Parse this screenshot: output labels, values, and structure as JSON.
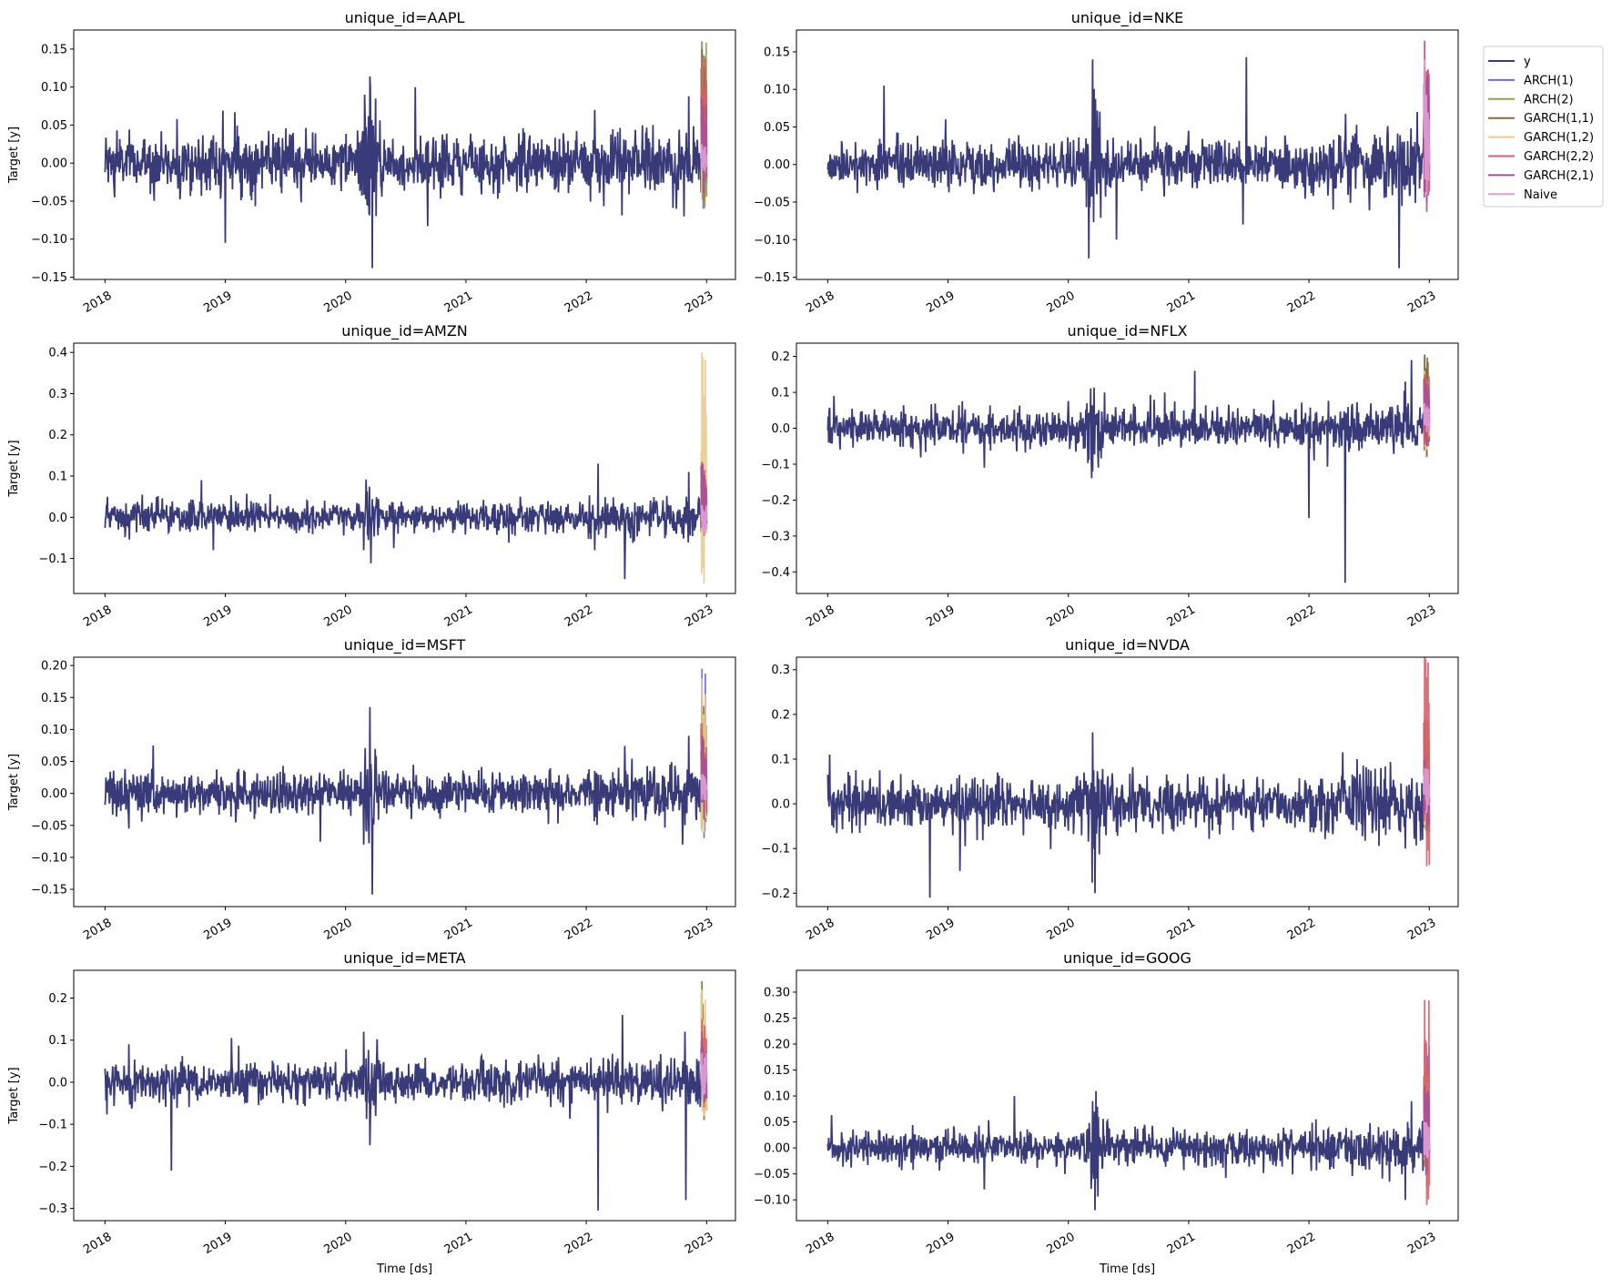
{
  "chart_data": {
    "type": "line",
    "figure_layout": "4 rows x 2 columns of subplots, legend top-right outside",
    "legend": {
      "placement": "right of top-right panel",
      "entries": [
        "y",
        "ARCH(1)",
        "ARCH(2)",
        "GARCH(1,1)",
        "GARCH(1,2)",
        "GARCH(2,2)",
        "GARCH(2,1)",
        "Naive"
      ]
    },
    "colors": {
      "y": "#393b79",
      "ARCH(1)": "#6b6ecf",
      "ARCH(2)": "#8ca252",
      "GARCH(1,1)": "#8c6d31",
      "GARCH(1,2)": "#e7cb94",
      "GARCH(2,2)": "#d6616b",
      "GARCH(2,1)": "#a55194",
      "Naive": "#de9ed6"
    },
    "xlabel": "Time [ds]",
    "ylabel": "Target [y]",
    "xlim": [
      2017.74,
      2023.24
    ],
    "xticks": [
      2018,
      2019,
      2020,
      2021,
      2022,
      2023
    ],
    "xtick_labels": [
      "2018",
      "2019",
      "2020",
      "2021",
      "2022",
      "2023"
    ],
    "history_range": [
      2018.0,
      2022.955
    ],
    "forecast_range": [
      2022.955,
      2023.0
    ],
    "panels": [
      {
        "title": "unique_id=AAPL",
        "ylim": [
          -0.153,
          0.175
        ],
        "yticks": [
          -0.15,
          -0.1,
          -0.05,
          0.0,
          0.05,
          0.1,
          0.15
        ],
        "ytick_labels": [
          "−0.15",
          "−0.10",
          "−0.05",
          "0.00",
          "0.05",
          "0.10",
          "0.15"
        ],
        "noise_std": 0.018,
        "spikes": [
          [
            2018.08,
            -0.045
          ],
          [
            2018.1,
            0.043
          ],
          [
            2018.6,
            0.058
          ],
          [
            2018.98,
            0.069
          ],
          [
            2019.0,
            -0.105
          ],
          [
            2019.08,
            0.067
          ],
          [
            2020.16,
            0.09
          ],
          [
            2020.2,
            0.114
          ],
          [
            2020.22,
            -0.138
          ],
          [
            2020.25,
            0.085
          ],
          [
            2020.58,
            0.1
          ],
          [
            2020.68,
            -0.083
          ],
          [
            2022.07,
            0.07
          ],
          [
            2022.75,
            -0.06
          ],
          [
            2022.85,
            0.088
          ]
        ],
        "forecasts": {
          "ARCH(1)": [
            -0.06,
            0.16
          ],
          "ARCH(2)": [
            -0.06,
            0.16
          ],
          "GARCH(1,1)": [
            -0.05,
            0.15
          ],
          "GARCH(1,2)": [
            -0.04,
            0.07
          ],
          "GARCH(2,2)": [
            -0.05,
            0.14
          ],
          "GARCH(2,1)": [
            -0.04,
            0.085
          ],
          "Naive": [
            -0.01,
            0.025
          ]
        }
      },
      {
        "title": "unique_id=NKE",
        "ylim": [
          -0.153,
          0.179
        ],
        "yticks": [
          -0.15,
          -0.1,
          -0.05,
          0.0,
          0.05,
          0.1,
          0.15
        ],
        "ytick_labels": [
          "−0.15",
          "−0.10",
          "−0.05",
          "0.00",
          "0.05",
          "0.10",
          "0.15"
        ],
        "noise_std": 0.016,
        "spikes": [
          [
            2018.47,
            0.105
          ],
          [
            2018.98,
            0.06
          ],
          [
            2020.17,
            -0.125
          ],
          [
            2020.2,
            0.14
          ],
          [
            2020.4,
            -0.1
          ],
          [
            2021.0,
            0.045
          ],
          [
            2021.45,
            -0.08
          ],
          [
            2021.48,
            0.143
          ],
          [
            2022.2,
            -0.06
          ],
          [
            2022.75,
            -0.138
          ],
          [
            2022.9,
            0.07
          ]
        ],
        "forecasts": {
          "ARCH(1)": [
            -0.05,
            0.13
          ],
          "ARCH(2)": [
            -0.05,
            0.12
          ],
          "GARCH(1,1)": [
            -0.05,
            0.12
          ],
          "GARCH(1,2)": [
            -0.04,
            0.1
          ],
          "GARCH(2,2)": [
            -0.05,
            0.13
          ],
          "GARCH(2,1)": [
            -0.063,
            0.165
          ],
          "Naive": [
            -0.04,
            0.14
          ]
        }
      },
      {
        "title": "unique_id=AMZN",
        "ylim": [
          -0.185,
          0.4225
        ],
        "yticks": [
          -0.1,
          0.0,
          0.1,
          0.2,
          0.3,
          0.4
        ],
        "ytick_labels": [
          "−0.1",
          "0.0",
          "0.1",
          "0.2",
          "0.3",
          "0.4"
        ],
        "noise_std": 0.019,
        "spikes": [
          [
            2018.8,
            0.09
          ],
          [
            2018.9,
            -0.08
          ],
          [
            2020.15,
            -0.08
          ],
          [
            2020.4,
            -0.075
          ],
          [
            2022.07,
            -0.08
          ],
          [
            2022.1,
            0.13
          ],
          [
            2022.32,
            -0.15
          ],
          [
            2022.85,
            0.11
          ]
        ],
        "forecasts": {
          "ARCH(1)": [
            -0.045,
            0.135
          ],
          "ARCH(2)": [
            -0.045,
            0.13
          ],
          "GARCH(1,1)": [
            -0.04,
            0.12
          ],
          "GARCH(1,2)": [
            -0.16,
            0.4
          ],
          "GARCH(2,2)": [
            -0.045,
            0.135
          ],
          "GARCH(2,1)": [
            -0.04,
            0.13
          ],
          "Naive": [
            -0.04,
            0.03
          ]
        }
      },
      {
        "title": "unique_id=NFLX",
        "ylim": [
          -0.46,
          0.237
        ],
        "yticks": [
          -0.4,
          -0.3,
          -0.2,
          -0.1,
          0.0,
          0.1,
          0.2
        ],
        "ytick_labels": [
          "−0.4",
          "−0.3",
          "−0.2",
          "−0.1",
          "0.0",
          "0.1",
          "0.2"
        ],
        "noise_std": 0.026,
        "spikes": [
          [
            2018.05,
            0.09
          ],
          [
            2019.3,
            -0.11
          ],
          [
            2020.2,
            -0.12
          ],
          [
            2020.3,
            0.1
          ],
          [
            2020.8,
            0.1
          ],
          [
            2021.05,
            0.16
          ],
          [
            2022.0,
            -0.25
          ],
          [
            2022.3,
            -0.43
          ],
          [
            2022.8,
            0.13
          ],
          [
            2022.85,
            0.19
          ]
        ],
        "forecasts": {
          "ARCH(1)": [
            -0.08,
            0.205
          ],
          "ARCH(2)": [
            -0.06,
            0.15
          ],
          "GARCH(1,1)": [
            -0.08,
            0.205
          ],
          "GARCH(1,2)": [
            -0.06,
            0.16
          ],
          "GARCH(2,2)": [
            -0.05,
            0.15
          ],
          "GARCH(2,1)": [
            -0.05,
            0.14
          ],
          "Naive": [
            -0.01,
            0.07
          ]
        }
      },
      {
        "title": "unique_id=MSFT",
        "ylim": [
          -0.177,
          0.213
        ],
        "yticks": [
          -0.15,
          -0.1,
          -0.05,
          0.0,
          0.05,
          0.1,
          0.15,
          0.2
        ],
        "ytick_labels": [
          "−0.15",
          "−0.10",
          "−0.05",
          "0.00",
          "0.05",
          "0.10",
          "0.15",
          "0.20"
        ],
        "noise_std": 0.017,
        "spikes": [
          [
            2018.2,
            -0.055
          ],
          [
            2018.4,
            0.075
          ],
          [
            2020.15,
            -0.08
          ],
          [
            2020.2,
            0.135
          ],
          [
            2020.22,
            -0.158
          ],
          [
            2022.8,
            -0.08
          ],
          [
            2022.85,
            0.09
          ]
        ],
        "forecasts": {
          "ARCH(1)": [
            -0.07,
            0.195
          ],
          "ARCH(2)": [
            -0.06,
            0.15
          ],
          "GARCH(1,1)": [
            -0.05,
            0.135
          ],
          "GARCH(1,2)": [
            -0.06,
            0.18
          ],
          "GARCH(2,2)": [
            -0.04,
            0.11
          ],
          "GARCH(2,1)": [
            -0.04,
            0.09
          ],
          "Naive": [
            -0.01,
            0.03
          ]
        }
      },
      {
        "title": "unique_id=NVDA",
        "ylim": [
          -0.23,
          0.328
        ],
        "yticks": [
          -0.2,
          -0.1,
          0.0,
          0.1,
          0.2,
          0.3
        ],
        "ytick_labels": [
          "−0.2",
          "−0.1",
          "0.0",
          "0.1",
          "0.2",
          "0.3"
        ],
        "noise_std": 0.029,
        "spikes": [
          [
            2018.0,
            0.065
          ],
          [
            2018.85,
            -0.21
          ],
          [
            2019.1,
            -0.15
          ],
          [
            2020.2,
            0.16
          ],
          [
            2020.22,
            -0.2
          ],
          [
            2022.4,
            0.1
          ],
          [
            2022.8,
            -0.1
          ]
        ],
        "forecasts": {
          "ARCH(1)": [
            -0.06,
            0.1
          ],
          "ARCH(2)": [
            -0.06,
            0.1
          ],
          "GARCH(1,1)": [
            -0.07,
            0.19
          ],
          "GARCH(1,2)": [
            -0.06,
            0.1
          ],
          "GARCH(2,2)": [
            -0.14,
            0.355
          ],
          "GARCH(2,1)": [
            -0.06,
            0.1
          ],
          "Naive": [
            -0.02,
            0.08
          ]
        }
      },
      {
        "title": "unique_id=META",
        "ylim": [
          -0.329,
          0.266
        ],
        "yticks": [
          -0.3,
          -0.2,
          -0.1,
          0.0,
          0.1,
          0.2
        ],
        "ytick_labels": [
          "−0.3",
          "−0.2",
          "−0.1",
          "0.0",
          "0.1",
          "0.2"
        ],
        "noise_std": 0.023,
        "spikes": [
          [
            2018.2,
            0.09
          ],
          [
            2018.55,
            -0.21
          ],
          [
            2019.05,
            0.105
          ],
          [
            2020.15,
            0.12
          ],
          [
            2020.2,
            -0.15
          ],
          [
            2022.1,
            -0.305
          ],
          [
            2022.3,
            0.16
          ],
          [
            2022.82,
            0.12
          ],
          [
            2022.83,
            -0.28
          ]
        ],
        "forecasts": {
          "ARCH(1)": [
            -0.05,
            0.1
          ],
          "ARCH(2)": [
            -0.05,
            0.1
          ],
          "GARCH(1,1)": [
            -0.09,
            0.24
          ],
          "GARCH(1,2)": [
            -0.08,
            0.22
          ],
          "GARCH(2,2)": [
            -0.06,
            0.15
          ],
          "GARCH(2,1)": [
            -0.05,
            0.12
          ],
          "Naive": [
            -0.03,
            0.07
          ]
        }
      },
      {
        "title": "unique_id=GOOG",
        "ylim": [
          -0.14,
          0.342
        ],
        "yticks": [
          -0.1,
          -0.05,
          0.0,
          0.05,
          0.1,
          0.15,
          0.2,
          0.25,
          0.3
        ],
        "ytick_labels": [
          "−0.10",
          "−0.05",
          "0.00",
          "0.05",
          "0.10",
          "0.15",
          "0.20",
          "0.25",
          "0.30"
        ],
        "noise_std": 0.017,
        "spikes": [
          [
            2019.3,
            -0.08
          ],
          [
            2019.55,
            0.1
          ],
          [
            2020.2,
            0.09
          ],
          [
            2020.22,
            -0.12
          ],
          [
            2022.8,
            -0.1
          ],
          [
            2022.85,
            0.09
          ]
        ],
        "forecasts": {
          "ARCH(1)": [
            -0.075,
            0.2
          ],
          "ARCH(2)": [
            -0.06,
            0.15
          ],
          "GARCH(1,1)": [
            -0.06,
            0.15
          ],
          "GARCH(1,2)": [
            -0.06,
            0.17
          ],
          "GARCH(2,2)": [
            -0.11,
            0.285
          ],
          "GARCH(2,1)": [
            -0.05,
            0.12
          ],
          "Naive": [
            -0.02,
            0.05
          ]
        }
      }
    ]
  }
}
